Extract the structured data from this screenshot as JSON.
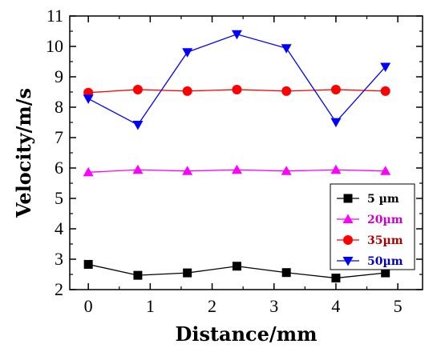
{
  "chart_data": {
    "type": "line",
    "xlabel": "Distance/mm",
    "ylabel": "Velocity/m/s",
    "xlim": [
      -0.3,
      5.4
    ],
    "ylim": [
      2,
      11
    ],
    "xticks": [
      "0",
      "1",
      "2",
      "3",
      "4",
      "5"
    ],
    "yticks": [
      "2",
      "3",
      "4",
      "5",
      "6",
      "7",
      "8",
      "9",
      "10",
      "11"
    ],
    "grid": false,
    "legend_position": "bottom-right",
    "x": [
      0,
      0.8,
      1.6,
      2.4,
      3.2,
      4.0,
      4.8
    ],
    "series": [
      {
        "name": "5 µm",
        "color": "#000000",
        "marker": "square",
        "values": [
          2.83,
          2.47,
          2.55,
          2.77,
          2.56,
          2.38,
          2.55
        ]
      },
      {
        "name": "20µm",
        "color": "#ff00ff",
        "marker": "triangle-up",
        "values": [
          5.86,
          5.94,
          5.9,
          5.94,
          5.9,
          5.94,
          5.9
        ]
      },
      {
        "name": "35µm",
        "color": "#ff0000",
        "marker": "circle",
        "values": [
          8.48,
          8.58,
          8.53,
          8.58,
          8.53,
          8.58,
          8.53
        ]
      },
      {
        "name": "50µm",
        "color": "#0000ff",
        "marker": "triangle-down",
        "values": [
          8.28,
          7.42,
          9.81,
          10.4,
          9.94,
          7.51,
          9.33
        ]
      }
    ]
  }
}
